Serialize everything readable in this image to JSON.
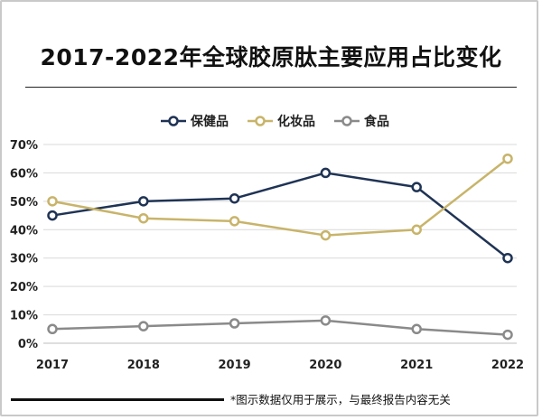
{
  "chart_data": {
    "type": "line",
    "title": "2017-2022年全球胶原肽主要应用占比变化",
    "categories": [
      "2017",
      "2018",
      "2019",
      "2020",
      "2021",
      "2022"
    ],
    "series": [
      {
        "name": "保健品",
        "color": "#1f3354",
        "values": [
          45,
          50,
          51,
          60,
          55,
          30
        ]
      },
      {
        "name": "化妆品",
        "color": "#c8b46a",
        "values": [
          50,
          44,
          43,
          38,
          40,
          65
        ]
      },
      {
        "name": "食品",
        "color": "#8a8a8a",
        "values": [
          5,
          6,
          7,
          8,
          5,
          3
        ]
      }
    ],
    "y_ticks": [
      "0%",
      "10%",
      "20%",
      "30%",
      "40%",
      "50%",
      "60%",
      "70%"
    ],
    "ylim": [
      0,
      70
    ],
    "grid": true,
    "legend_position": "top-center"
  },
  "footnote": "*图示数据仅用于展示，与最终报告内容无关"
}
